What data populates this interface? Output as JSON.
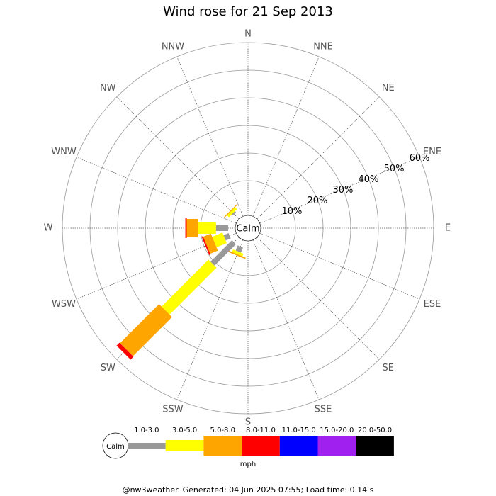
{
  "chart_data": {
    "type": "windrose",
    "title": "Wind rose for 21 Sep 2013",
    "calm_label": "Calm",
    "unit": "mph",
    "directions": [
      "N",
      "NNE",
      "NE",
      "ENE",
      "E",
      "ESE",
      "SE",
      "SSE",
      "S",
      "SSW",
      "SW",
      "WSW",
      "W",
      "WNW",
      "NW",
      "NNW"
    ],
    "rlim": [
      0,
      60
    ],
    "rticks": [
      {
        "value": 10,
        "label": "10%"
      },
      {
        "value": 20,
        "label": "20%"
      },
      {
        "value": 30,
        "label": "30%"
      },
      {
        "value": 40,
        "label": "40%"
      },
      {
        "value": 50,
        "label": "50%"
      },
      {
        "value": 60,
        "label": "60%"
      }
    ],
    "series": [
      {
        "name": "1.0-3.0",
        "color": "#999999",
        "values": [
          0,
          0,
          0,
          0,
          0,
          0,
          0,
          0,
          0,
          2,
          11,
          2,
          4.4,
          0,
          0.5,
          0
        ]
      },
      {
        "name": "3.0-5.0",
        "color": "#ffff00",
        "values": [
          0,
          0,
          0,
          0,
          0,
          0,
          0,
          0,
          0,
          1,
          24,
          4,
          6.6,
          0,
          1,
          0
        ]
      },
      {
        "name": "5.0-8.0",
        "color": "#ffa500",
        "values": [
          0,
          0,
          0,
          0,
          0,
          0,
          0,
          0,
          0,
          0.5,
          20,
          3,
          4,
          0,
          0.3,
          0
        ]
      },
      {
        "name": "8.0-11.0",
        "color": "#ff0000",
        "values": [
          0,
          0,
          0,
          0,
          0,
          0,
          0,
          0,
          0,
          0,
          1.5,
          0.5,
          0.5,
          0,
          0,
          0
        ]
      },
      {
        "name": "11.0-15.0",
        "color": "#0000ff",
        "values": [
          0,
          0,
          0,
          0,
          0,
          0,
          0,
          0,
          0,
          0,
          0,
          0,
          0,
          0,
          0,
          0
        ]
      },
      {
        "name": "15.0-20.0",
        "color": "#a020f0",
        "values": [
          0,
          0,
          0,
          0,
          0,
          0,
          0,
          0,
          0,
          0,
          0,
          0,
          0,
          0,
          0,
          0
        ]
      },
      {
        "name": "20.0-50.0",
        "color": "#000000",
        "values": [
          0,
          0,
          0,
          0,
          0,
          0,
          0,
          0,
          0,
          0,
          0,
          0,
          0,
          0,
          0,
          0
        ]
      }
    ]
  },
  "footer": "@nw3weather. Generated: 04 Jun 2025 07:55; Load time: 0.14 s"
}
